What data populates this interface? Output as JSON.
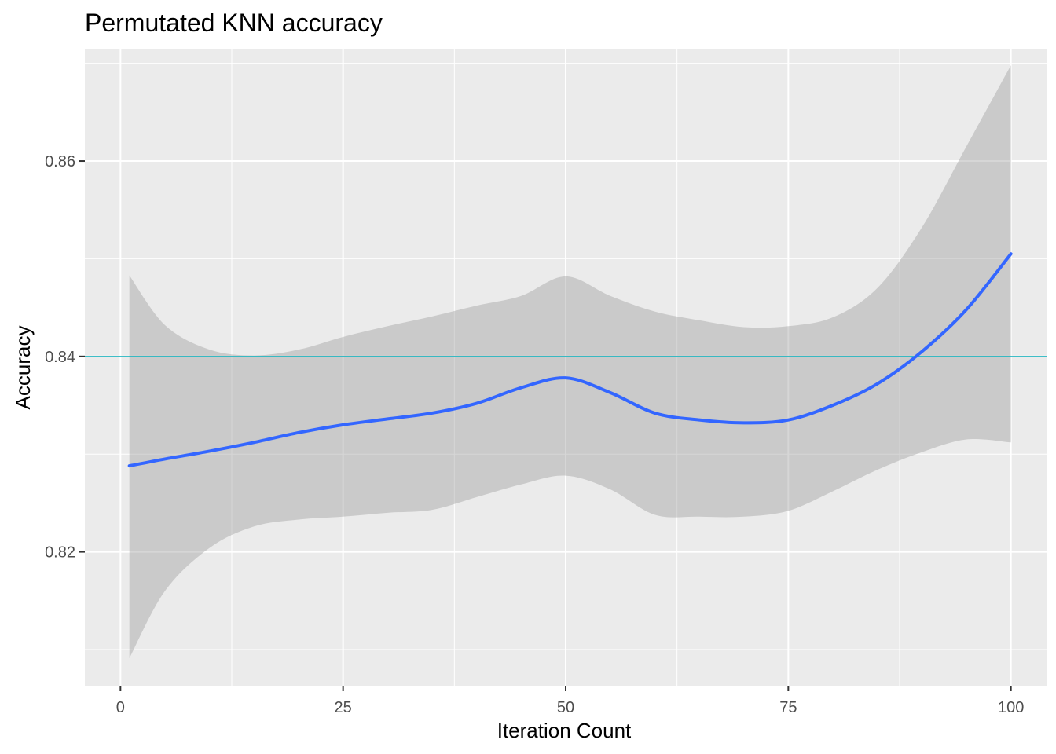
{
  "chart_data": {
    "type": "line",
    "title": "Permutated KNN accuracy",
    "xlabel": "Iteration Count",
    "ylabel": "Accuracy",
    "xlim": [
      -4,
      104
    ],
    "ylim": [
      0.8063,
      0.8715
    ],
    "x_ticks": [
      0,
      25,
      50,
      75,
      100
    ],
    "x_tick_labels": [
      "0",
      "25",
      "50",
      "75",
      "100"
    ],
    "y_ticks": [
      0.82,
      0.84,
      0.86
    ],
    "y_tick_labels": [
      "0.82",
      "0.84",
      "0.86"
    ],
    "grid": true,
    "legend": "none",
    "reference_line": {
      "y": 0.84,
      "color": "#22b5bf"
    },
    "series": [
      {
        "kind": "smooth",
        "color": "#3366ff",
        "band_color": "#999999",
        "x": [
          1,
          5,
          10,
          15,
          20,
          25,
          30,
          35,
          40,
          45,
          50,
          55,
          60,
          65,
          70,
          75,
          80,
          85,
          90,
          95,
          100
        ],
        "y": [
          0.8288,
          0.8295,
          0.8303,
          0.8312,
          0.8322,
          0.833,
          0.8336,
          0.8342,
          0.8352,
          0.8368,
          0.8378,
          0.8363,
          0.8342,
          0.8335,
          0.8332,
          0.8335,
          0.835,
          0.8372,
          0.8405,
          0.8448,
          0.8505
        ],
        "lower": [
          0.8091,
          0.816,
          0.8204,
          0.8226,
          0.8233,
          0.8236,
          0.824,
          0.8243,
          0.8256,
          0.8269,
          0.8278,
          0.8264,
          0.8238,
          0.8236,
          0.8236,
          0.8242,
          0.8262,
          0.8284,
          0.8302,
          0.8315,
          0.8312
        ],
        "upper": [
          0.8483,
          0.8432,
          0.8407,
          0.8401,
          0.8407,
          0.842,
          0.8431,
          0.8441,
          0.8452,
          0.8462,
          0.8482,
          0.8462,
          0.8446,
          0.8437,
          0.843,
          0.8431,
          0.844,
          0.847,
          0.8532,
          0.8615,
          0.8698
        ]
      }
    ]
  }
}
